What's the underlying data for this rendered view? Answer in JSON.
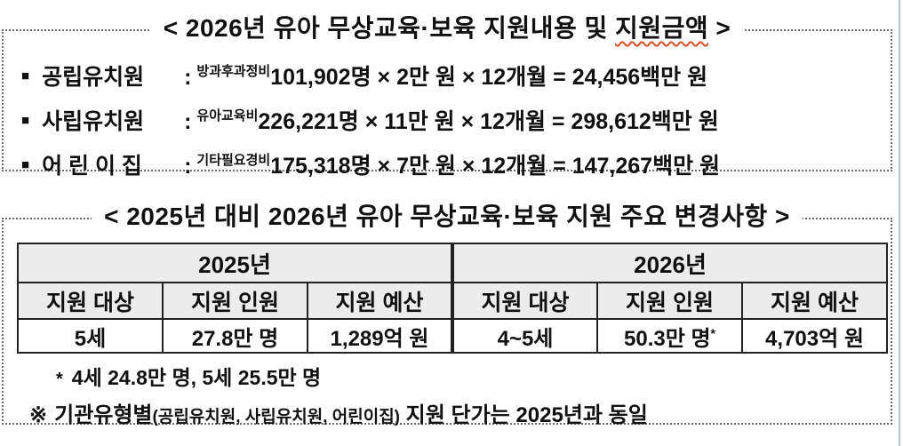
{
  "colors": {
    "header_bg": "#ececec",
    "table_border": "#222222",
    "dotted_border": "#6b6b6b",
    "spellcheck_underline": "#d4502a",
    "edge_line": "#aeccce"
  },
  "section1": {
    "title_prefix": "< 2026년 유아 무상교육·보육 지원내용 및 ",
    "title_underlined": "지원금액",
    "title_suffix": " >",
    "items": [
      {
        "bullet": "■",
        "label": "공립유치원",
        "colon": ":",
        "cost_type": "방과후과정비",
        "formula": "101,902명 × 2만 원 × 12개월 = 24,456백만 원"
      },
      {
        "bullet": "■",
        "label": "사립유치원",
        "colon": ":",
        "cost_type": "유아교육비",
        "formula": "226,221명 × 11만 원 × 12개월 = 298,612백만 원"
      },
      {
        "bullet": "■",
        "label": "어 린 이 집",
        "colon": ":",
        "cost_type": "기타필요경비",
        "formula": "175,318명 × 7만 원 × 12개월 = 147,267백만 원"
      }
    ]
  },
  "section2": {
    "title": "< 2025년 대비 2026년 유아 무상교육·보육 지원 주요 변경사항 >",
    "table": {
      "year_groups": [
        "2025년",
        "2026년"
      ],
      "column_headers": [
        "지원 대상",
        "지원 인원",
        "지원 예산",
        "지원 대상",
        "지원 인원",
        "지원 예산"
      ],
      "row": [
        "5세",
        "27.8만 명",
        "1,289억 원",
        "4~5세",
        "50.3만 명",
        "4,703억 원"
      ],
      "row_sup": [
        "",
        "",
        "",
        "",
        "*",
        ""
      ]
    },
    "footnotes": {
      "fn1_marker": "*",
      "fn1_text": "4세 24.8만 명, 5세 25.5만 명",
      "fn2_marker": "※",
      "fn2_main": "기관유형별",
      "fn2_small": "(공립유치원, 사립유치원, 어린이집)",
      "fn2_rest": " 지원 단가는 2025년과 동일"
    }
  }
}
